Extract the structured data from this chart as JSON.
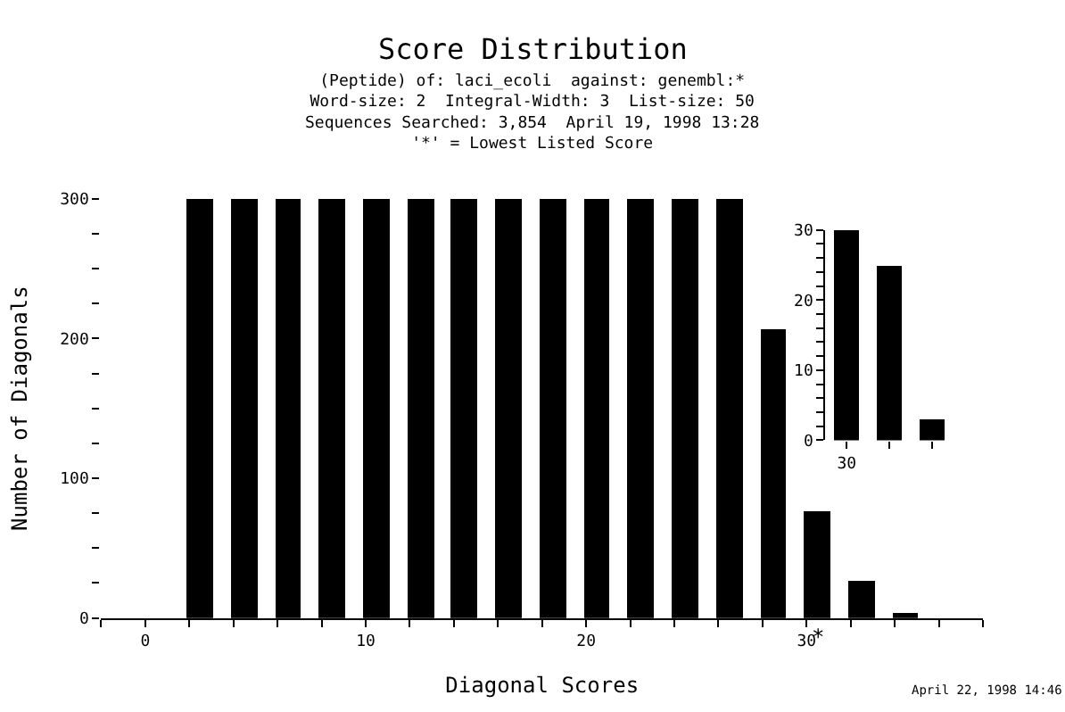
{
  "chart_data": [
    {
      "type": "bar",
      "title": "Score Distribution",
      "subtitle": "(Peptide) of: laci_ecoli  against: genembl:*\nWord-size: 2  Integral-Width: 3  List-size: 50\nSequences Searched: 3,854  April 19, 1998 13:28\n'*' = Lowest Listed Score",
      "xlabel": "Diagonal Scores",
      "ylabel": "Number of Diagonals",
      "x": [
        2.5,
        4.5,
        6.5,
        8.5,
        10.5,
        12.5,
        14.5,
        16.5,
        18.5,
        20.5,
        22.5,
        24.5,
        26.5,
        28.5,
        30.5,
        32.5,
        34.5
      ],
      "values": [
        300,
        300,
        300,
        300,
        300,
        300,
        300,
        300,
        300,
        300,
        300,
        300,
        300,
        207,
        76,
        27,
        4
      ],
      "color": "#000000",
      "xlim": [
        -2,
        38
      ],
      "xticks": [
        {
          "value": -2,
          "label": null
        },
        0,
        {
          "value": 2,
          "label": null
        },
        {
          "value": 4,
          "label": null
        },
        {
          "value": 6,
          "label": null
        },
        {
          "value": 8,
          "label": null
        },
        10,
        {
          "value": 12,
          "label": null
        },
        {
          "value": 14,
          "label": null
        },
        {
          "value": 16,
          "label": null
        },
        {
          "value": 18,
          "label": null
        },
        20,
        {
          "value": 22,
          "label": null
        },
        {
          "value": 24,
          "label": null
        },
        {
          "value": 26,
          "label": null
        },
        {
          "value": 28,
          "label": null
        },
        30,
        {
          "value": 32,
          "label": null
        },
        {
          "value": 34,
          "label": null
        },
        {
          "value": 36,
          "label": null
        },
        {
          "value": 38,
          "label": null
        }
      ],
      "ylim": [
        0,
        300
      ],
      "yticks": [
        0,
        {
          "value": 25,
          "label": null
        },
        {
          "value": 50,
          "label": null
        },
        {
          "value": 75,
          "label": null
        },
        100,
        {
          "value": 125,
          "label": null
        },
        {
          "value": 150,
          "label": null
        },
        {
          "value": 175,
          "label": null
        },
        200,
        {
          "value": 225,
          "label": null
        },
        {
          "value": 250,
          "label": null
        },
        {
          "value": 275,
          "label": null
        },
        300
      ],
      "annotations": [
        {
          "text": "*",
          "x": 30.5,
          "y": 0
        },
        "April 22, 1998 14:46"
      ],
      "legend": false
    },
    {
      "type": "bar",
      "categories": [
        "30",
        null,
        null
      ],
      "values": [
        30,
        25,
        3
      ],
      "color": "#000000",
      "ylim": [
        0,
        30
      ],
      "yticks": [
        0,
        {
          "value": 2,
          "label": null
        },
        {
          "value": 4,
          "label": null
        },
        {
          "value": 6,
          "label": null
        },
        {
          "value": 8,
          "label": null
        },
        10,
        {
          "value": 12,
          "label": null
        },
        {
          "value": 14,
          "label": null
        },
        {
          "value": 16,
          "label": null
        },
        {
          "value": 18,
          "label": null
        },
        20,
        {
          "value": 22,
          "label": null
        },
        {
          "value": 24,
          "label": null
        },
        {
          "value": 26,
          "label": null
        },
        {
          "value": 28,
          "label": null
        },
        30
      ],
      "legend": false
    }
  ]
}
